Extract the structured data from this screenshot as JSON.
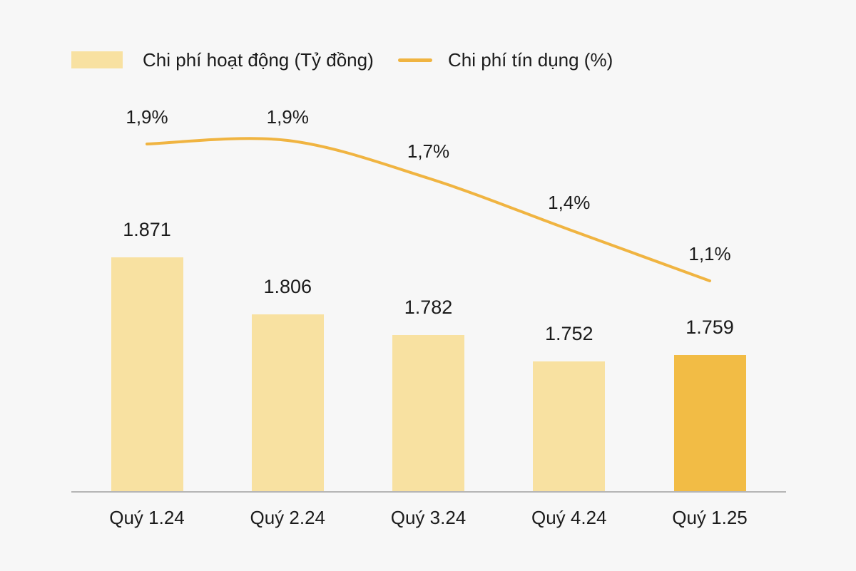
{
  "colors": {
    "background": "#f7f7f7",
    "bar_light": "#f8e1a1",
    "bar_highlight": "#f2bc45",
    "line": "#f0b441",
    "text": "#1b1b1b",
    "axis": "#b5b5b5"
  },
  "legend": {
    "bar_label": "Chi phí hoạt động (Tỷ đồng)",
    "line_label": "Chi phí tín dụng (%)"
  },
  "chart_data": {
    "type": "bar+line combo",
    "categories": [
      "Quý 1.24",
      "Quý 2.24",
      "Quý 3.24",
      "Quý 4.24",
      "Quý 1.25"
    ],
    "series": [
      {
        "name": "Chi phí hoạt động (Tỷ đồng)",
        "type": "bar",
        "values": [
          1871,
          1806,
          1782,
          1752,
          1759
        ],
        "labels": [
          "1.871",
          "1.806",
          "1.782",
          "1.752",
          "1.759"
        ],
        "highlight_index": 4
      },
      {
        "name": "Chi phí tín dụng (%)",
        "type": "line",
        "values": [
          1.9,
          1.9,
          1.7,
          1.4,
          1.1
        ],
        "labels": [
          "1,9%",
          "1,9%",
          "1,7%",
          "1,4%",
          "1,1%"
        ]
      }
    ],
    "legend_position": "top",
    "grid": false,
    "value_labels": true,
    "x_axis_line": true
  }
}
